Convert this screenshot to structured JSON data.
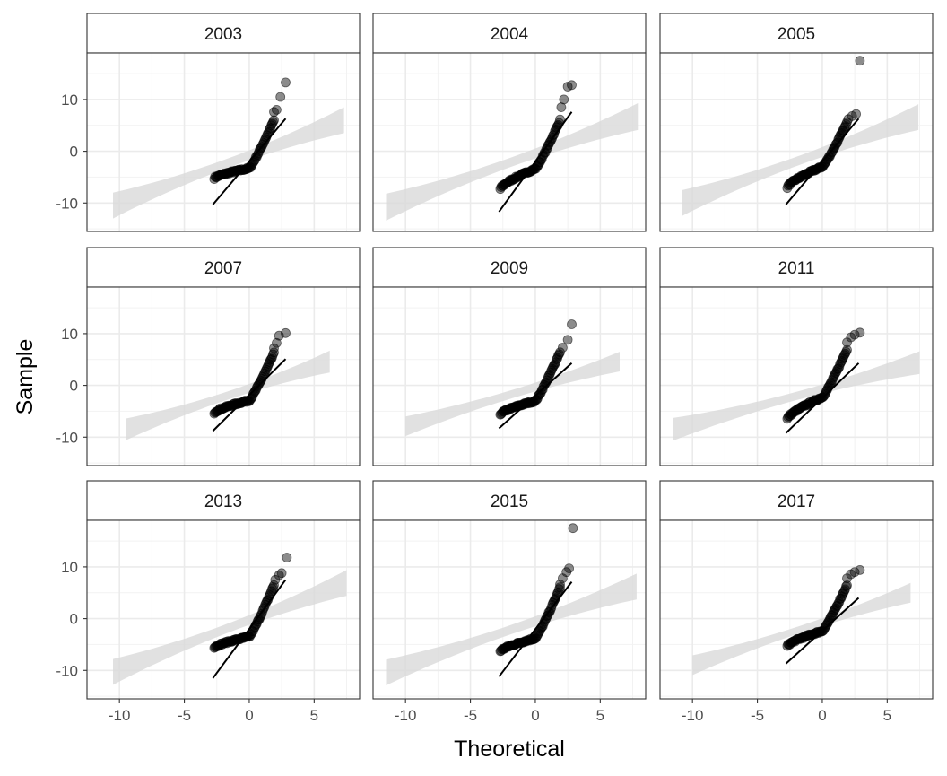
{
  "chart_data": {
    "type": "scatter",
    "subtype": "faceted-qq-plot",
    "xlabel": "Theoretical",
    "ylabel": "Sample",
    "xlim": [
      -12.5,
      8.5
    ],
    "ylim": [
      -15.5,
      19.0
    ],
    "x_ticks": [
      -10,
      -5,
      0,
      5
    ],
    "x_tick_labels": [
      "-10",
      "-5",
      "0",
      "5"
    ],
    "y_ticks": [
      -10,
      0,
      10
    ],
    "y_tick_labels": [
      "-10",
      "0",
      "10"
    ],
    "grid": true,
    "theme": "bw",
    "point_color": "#000000",
    "point_alpha": 0.45,
    "ribbon_color": "#d9d9d9",
    "facets": [
      {
        "label": "2003",
        "line": {
          "x": [
            -2.8,
            2.8
          ],
          "y": [
            -10.3,
            6.3
          ]
        },
        "band": {
          "x": [
            -10.5,
            7.3
          ],
          "center": [
            -10.5,
            6.0
          ],
          "half_width_ends": [
            2.5,
            2.5
          ],
          "half_width_mid": 0.9
        },
        "q_low": -5.2,
        "q_break": -3.3,
        "q_high": 6.0,
        "outliers": [
          [
            1.9,
            7.6
          ],
          [
            2.1,
            8.0
          ],
          [
            2.4,
            10.5
          ],
          [
            2.8,
            13.3
          ]
        ]
      },
      {
        "label": "2004",
        "line": {
          "x": [
            -2.8,
            2.8
          ],
          "y": [
            -11.7,
            7.6
          ]
        },
        "band": {
          "x": [
            -11.5,
            7.9
          ],
          "center": [
            -10.8,
            6.7
          ],
          "half_width_ends": [
            2.6,
            2.6
          ],
          "half_width_mid": 0.9
        },
        "q_low": -7.3,
        "q_break": -3.4,
        "q_high": 6.0,
        "outliers": [
          [
            2.0,
            8.5
          ],
          [
            2.2,
            10.0
          ],
          [
            2.5,
            12.5
          ],
          [
            2.8,
            12.8
          ]
        ]
      },
      {
        "label": "2005",
        "line": {
          "x": [
            -2.8,
            2.8
          ],
          "y": [
            -10.3,
            6.3
          ]
        },
        "band": {
          "x": [
            -10.8,
            7.4
          ],
          "center": [
            -10.0,
            6.6
          ],
          "half_width_ends": [
            2.5,
            2.5
          ],
          "half_width_mid": 0.9
        },
        "q_low": -7.0,
        "q_break": -3.0,
        "q_high": 5.5,
        "outliers": [
          [
            2.0,
            6.2
          ],
          [
            2.3,
            6.8
          ],
          [
            2.6,
            7.2
          ],
          [
            2.9,
            17.5
          ]
        ]
      },
      {
        "label": "2007",
        "line": {
          "x": [
            -2.8,
            2.8
          ],
          "y": [
            -8.8,
            5.1
          ]
        },
        "band": {
          "x": [
            -9.5,
            6.2
          ],
          "center": [
            -8.5,
            4.6
          ],
          "half_width_ends": [
            2.1,
            2.1
          ],
          "half_width_mid": 0.8
        },
        "q_low": -5.3,
        "q_break": -2.9,
        "q_high": 6.2,
        "outliers": [
          [
            1.9,
            7.2
          ],
          [
            2.1,
            8.2
          ],
          [
            2.3,
            9.6
          ],
          [
            2.8,
            10.1
          ]
        ]
      },
      {
        "label": "2009",
        "line": {
          "x": [
            -2.8,
            2.8
          ],
          "y": [
            -8.3,
            4.3
          ]
        },
        "band": {
          "x": [
            -10.0,
            6.5
          ],
          "center": [
            -7.9,
            4.6
          ],
          "half_width_ends": [
            1.9,
            1.9
          ],
          "half_width_mid": 0.8
        },
        "q_low": -5.6,
        "q_break": -3.0,
        "q_high": 6.5,
        "outliers": [
          [
            2.1,
            7.3
          ],
          [
            2.5,
            8.8
          ],
          [
            2.8,
            11.8
          ]
        ]
      },
      {
        "label": "2011",
        "line": {
          "x": [
            -2.8,
            2.8
          ],
          "y": [
            -9.2,
            4.3
          ]
        },
        "band": {
          "x": [
            -11.5,
            7.5
          ],
          "center": [
            -8.5,
            4.4
          ],
          "half_width_ends": [
            2.2,
            2.2
          ],
          "half_width_mid": 0.8
        },
        "q_low": -6.5,
        "q_break": -2.3,
        "q_high": 7.0,
        "outliers": [
          [
            1.9,
            8.3
          ],
          [
            2.2,
            9.3
          ],
          [
            2.5,
            9.8
          ],
          [
            2.9,
            10.2
          ]
        ]
      },
      {
        "label": "2013",
        "line": {
          "x": [
            -2.8,
            2.8
          ],
          "y": [
            -11.5,
            7.5
          ]
        },
        "band": {
          "x": [
            -10.5,
            7.5
          ],
          "center": [
            -10.3,
            6.9
          ],
          "half_width_ends": [
            2.5,
            2.5
          ],
          "half_width_mid": 0.9
        },
        "q_low": -5.6,
        "q_break": -3.5,
        "q_high": 6.5,
        "outliers": [
          [
            2.0,
            7.5
          ],
          [
            2.3,
            8.4
          ],
          [
            2.5,
            8.8
          ],
          [
            2.9,
            11.8
          ]
        ]
      },
      {
        "label": "2015",
        "line": {
          "x": [
            -2.8,
            2.8
          ],
          "y": [
            -11.2,
            7.1
          ]
        },
        "band": {
          "x": [
            -11.5,
            7.8
          ],
          "center": [
            -10.4,
            6.2
          ],
          "half_width_ends": [
            2.5,
            2.5
          ],
          "half_width_mid": 0.9
        },
        "q_low": -6.3,
        "q_break": -3.8,
        "q_high": 6.0,
        "outliers": [
          [
            1.9,
            6.6
          ],
          [
            2.1,
            7.8
          ],
          [
            2.4,
            9.0
          ],
          [
            2.6,
            9.7
          ],
          [
            2.9,
            17.5
          ]
        ]
      },
      {
        "label": "2017",
        "line": {
          "x": [
            -2.8,
            2.8
          ],
          "y": [
            -8.7,
            4.0
          ]
        },
        "band": {
          "x": [
            -10.0,
            6.8
          ],
          "center": [
            -9.0,
            5.0
          ],
          "half_width_ends": [
            1.9,
            1.9
          ],
          "half_width_mid": 0.7
        },
        "q_low": -5.3,
        "q_break": -2.4,
        "q_high": 6.5,
        "outliers": [
          [
            1.9,
            7.8
          ],
          [
            2.2,
            8.6
          ],
          [
            2.5,
            9.0
          ],
          [
            2.9,
            9.4
          ]
        ]
      }
    ]
  }
}
